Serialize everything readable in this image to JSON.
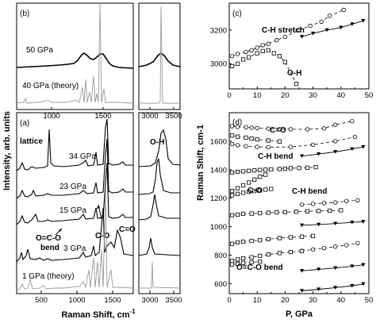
{
  "chart_data": [
    {
      "panel": "(b)",
      "type": "line",
      "xlabel": "",
      "labels": {
        "top": "50 GPa",
        "bottom": "40 GPa (theory)"
      },
      "xticks_left": [
        "1000",
        "1500"
      ],
      "xticks_right": [
        "3000",
        "3500"
      ]
    },
    {
      "panel": "(a)",
      "type": "line",
      "xlabel": "Raman Shift, cm",
      "xlabel_sup": "-1",
      "ylabel": "Intensity, arb. units",
      "xticks_left": [
        "500",
        "1000",
        "1500"
      ],
      "xticks_right": [
        "3000",
        "3500"
      ],
      "trace_labels": [
        "34 GPa",
        "23 GPa",
        "15 GPa",
        "3 GPa",
        "1 GPa (theory)"
      ],
      "annotations": {
        "lattice": "lattice",
        "oco_1": "O=C-O",
        "oco_2": "bend",
        "co": "C-O",
        "c_eq_o": "C=O",
        "oh": "O-H"
      }
    },
    {
      "panel": "(c)",
      "type": "scatter",
      "xlim": [
        0,
        50
      ],
      "ylim": [
        2850,
        3360
      ],
      "xticks": [
        "0",
        "10",
        "20",
        "30",
        "40",
        "50"
      ],
      "yticks": [
        "3000",
        "3200"
      ],
      "annotations": {
        "ch": "C-H stretch",
        "oh": "O-H"
      },
      "series": [
        {
          "marker": "circle",
          "x": [
            1,
            3,
            6,
            8,
            10,
            12,
            14,
            17,
            20,
            25,
            29,
            33,
            36,
            41
          ],
          "y": [
            3045,
            3058,
            3070,
            3080,
            3095,
            3110,
            3118,
            3140,
            3160,
            3200,
            3225,
            3250,
            3285,
            3320
          ]
        },
        {
          "marker": "square",
          "x": [
            1,
            3,
            5,
            7,
            10,
            12,
            14,
            16,
            18,
            20,
            24
          ],
          "y": [
            2985,
            3000,
            3025,
            3038,
            3062,
            3075,
            3080,
            3062,
            3045,
            3010,
            2880
          ]
        },
        {
          "marker": "triangle",
          "x": [
            26,
            30,
            35,
            40,
            44,
            48
          ],
          "y": [
            3160,
            3180,
            3200,
            3215,
            3235,
            3255
          ]
        }
      ]
    },
    {
      "panel": "(d)",
      "type": "scatter",
      "xlabel": "P, GPa",
      "ylabel": "Raman Shift, cm-1",
      "xlim": [
        0,
        50
      ],
      "ylim": [
        530,
        1800
      ],
      "xticks": [
        "0",
        "10",
        "20",
        "30",
        "40",
        "50"
      ],
      "yticks": [
        "600",
        "800",
        "1000",
        "1200",
        "1400",
        "1600"
      ],
      "annotations": {
        "c_eq_o": "C=O",
        "ch_bend_1": "C-H bend",
        "co": "C-O",
        "ch_bend_2": "C-H bend",
        "oco_bend": "O=C-O bend"
      },
      "series": [
        {
          "name": "",
          "marker": "circle",
          "x": [
            1,
            3,
            6,
            8,
            10,
            14,
            18,
            22,
            28,
            34,
            38,
            44
          ],
          "y": [
            1705,
            1700,
            1698,
            1695,
            1692,
            1688,
            1685,
            1684,
            1683,
            1690,
            1715,
            1740
          ]
        },
        {
          "name": "",
          "marker": "square",
          "x": [
            1,
            3,
            6,
            8,
            10,
            14,
            18
          ],
          "y": [
            1640,
            1632,
            1625,
            1618,
            1612,
            1605,
            1598
          ]
        },
        {
          "name": "",
          "marker": "circle",
          "x": [
            1,
            3,
            6,
            10,
            14,
            22,
            30,
            38,
            45
          ],
          "y": [
            1580,
            1572,
            1565,
            1560,
            1558,
            1560,
            1575,
            1600,
            1630
          ]
        },
        {
          "name": "",
          "marker": "triangle",
          "x": [
            26,
            32,
            38,
            44,
            48
          ],
          "y": [
            1495,
            1510,
            1525,
            1545,
            1560
          ]
        },
        {
          "name": "",
          "marker": "square",
          "x": [
            1,
            3,
            5,
            7,
            9,
            11,
            13,
            15,
            18,
            20,
            22,
            25,
            28,
            31
          ],
          "y": [
            1380,
            1385,
            1388,
            1392,
            1395,
            1398,
            1400,
            1402,
            1405,
            1407,
            1410,
            1412,
            1414,
            1418
          ]
        },
        {
          "name": "",
          "marker": "square",
          "x": [
            1,
            3,
            5,
            7,
            9,
            11,
            13
          ],
          "y": [
            1250,
            1270,
            1290,
            1310,
            1330,
            1350,
            1365
          ]
        },
        {
          "name": "",
          "marker": "square",
          "x": [
            1,
            3,
            5,
            7,
            9,
            11,
            13,
            15
          ],
          "y": [
            1220,
            1230,
            1238,
            1245,
            1250,
            1255,
            1260,
            1265
          ]
        },
        {
          "name": "",
          "marker": "circle",
          "x": [
            26,
            30,
            34,
            38,
            42,
            46
          ],
          "y": [
            1155,
            1160,
            1165,
            1170,
            1180,
            1185
          ]
        },
        {
          "name": "",
          "marker": "square",
          "x": [
            1,
            3,
            5,
            8,
            11,
            14,
            17,
            20,
            24,
            28,
            32,
            36,
            40
          ],
          "y": [
            1080,
            1085,
            1090,
            1092,
            1095,
            1098,
            1100,
            1102,
            1105,
            1108,
            1110,
            1112,
            1115
          ]
        },
        {
          "name": "",
          "marker": "triangle",
          "x": [
            26,
            32,
            38,
            44,
            48
          ],
          "y": [
            1010,
            1015,
            1022,
            1030,
            1035
          ]
        },
        {
          "name": "",
          "marker": "square",
          "x": [
            1,
            3,
            5,
            8,
            11,
            14,
            18,
            22,
            26,
            30
          ],
          "y": [
            880,
            890,
            895,
            900,
            905,
            912,
            920,
            925,
            930,
            935
          ]
        },
        {
          "name": "",
          "marker": "circle",
          "x": [
            26,
            30,
            34,
            38,
            42,
            46
          ],
          "y": [
            830,
            840,
            850,
            860,
            870,
            885
          ]
        },
        {
          "name": "",
          "marker": "square",
          "x": [
            1,
            3,
            5,
            8,
            11,
            14,
            18,
            22,
            26
          ],
          "y": [
            760,
            770,
            778,
            785,
            795,
            805,
            815,
            822,
            828
          ]
        },
        {
          "name": "",
          "marker": "square",
          "x": [
            1,
            3,
            5,
            8,
            11
          ],
          "y": [
            735,
            740,
            745,
            750,
            755
          ]
        },
        {
          "name": "",
          "marker": "triangle",
          "x": [
            26,
            32,
            38,
            44,
            48
          ],
          "y": [
            690,
            700,
            710,
            722,
            732
          ]
        },
        {
          "name": "",
          "marker": "triangle",
          "x": [
            26,
            32,
            38,
            44,
            48
          ],
          "y": [
            550,
            560,
            572,
            585,
            598
          ]
        }
      ]
    }
  ]
}
